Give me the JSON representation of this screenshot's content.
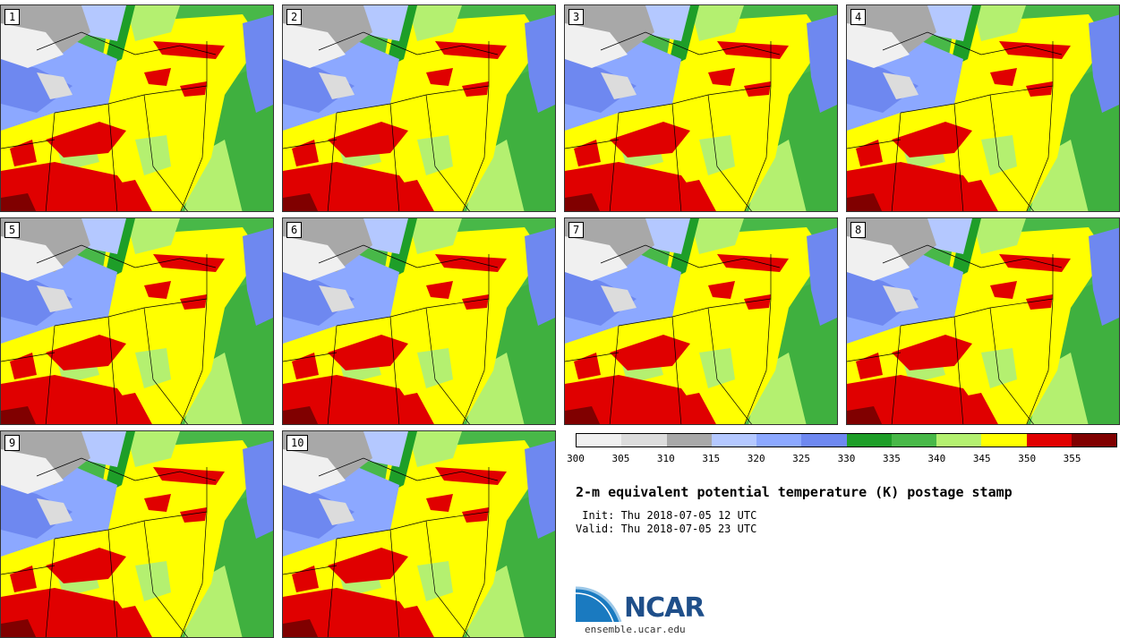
{
  "panels": [
    {
      "label": "1"
    },
    {
      "label": "2"
    },
    {
      "label": "3"
    },
    {
      "label": "4"
    },
    {
      "label": "5"
    },
    {
      "label": "6"
    },
    {
      "label": "7"
    },
    {
      "label": "8"
    },
    {
      "label": "9"
    },
    {
      "label": "10"
    }
  ],
  "colorbar": {
    "colors": [
      "#f0f0f0",
      "#dcdcdc",
      "#a8a8a8",
      "#b4c8ff",
      "#8ca8ff",
      "#6e88f0",
      "#1e9e28",
      "#48b848",
      "#b4f070",
      "#ffff00",
      "#e00000",
      "#800000"
    ],
    "ticks": [
      "300",
      "305",
      "310",
      "315",
      "320",
      "325",
      "330",
      "335",
      "340",
      "345",
      "350",
      "355"
    ]
  },
  "title": "2-m equivalent potential temperature (K) postage stamp",
  "init_label": " Init: Thu 2018-07-05 12 UTC",
  "valid_label": "Valid: Thu 2018-07-05 23 UTC",
  "logo": {
    "name": "NCAR",
    "url": "ensemble.ucar.edu"
  }
}
